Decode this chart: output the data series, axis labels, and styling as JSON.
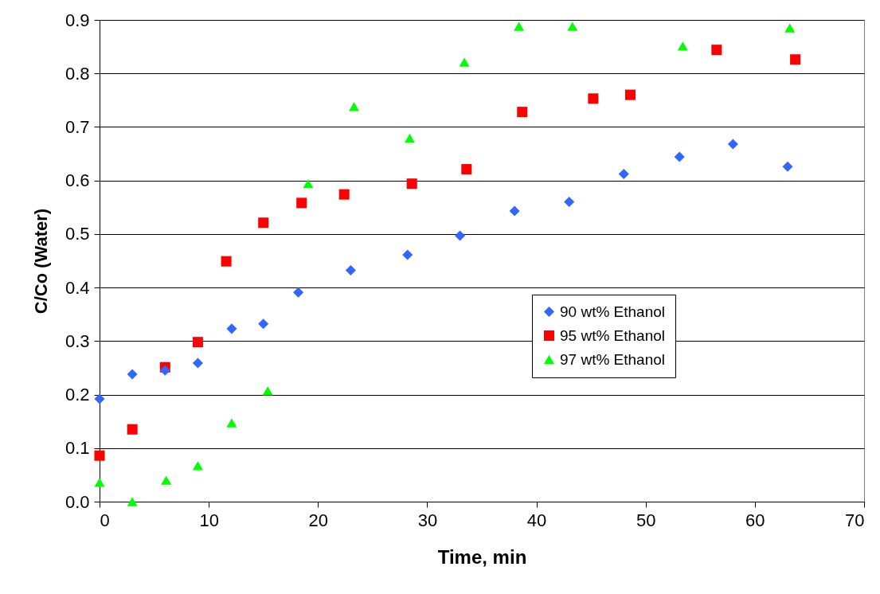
{
  "chart_data": {
    "type": "scatter",
    "xlabel": "Time, min",
    "ylabel": "C/Co (Water)",
    "xlim": [
      0,
      70
    ],
    "ylim": [
      0,
      0.9
    ],
    "xticks": [
      0,
      10,
      20,
      30,
      40,
      50,
      60,
      70
    ],
    "yticks": [
      {
        "value": 0,
        "label": "0.0"
      },
      0.1,
      0.2,
      0.3,
      0.4,
      0.5,
      0.6,
      0.7,
      0.8,
      0.9
    ],
    "grid": "y",
    "legend": "right",
    "series": [
      {
        "name": "90 wt% Ethanol",
        "color": "#3366ff",
        "marker": "diamond",
        "x": [
          0,
          3,
          6,
          9,
          12.1,
          15,
          18.2,
          23,
          28.2,
          33,
          38,
          43,
          48,
          53.1,
          58,
          63
        ],
        "values": [
          0.192,
          0.238,
          0.245,
          0.259,
          0.323,
          0.332,
          0.391,
          0.432,
          0.461,
          0.497,
          0.543,
          0.56,
          0.612,
          0.644,
          0.668,
          0.626
        ]
      },
      {
        "name": "95 wt% Ethanol",
        "color": "#ff0000",
        "marker": "square",
        "x": [
          0,
          3,
          6,
          9,
          11.6,
          15,
          18.5,
          22.4,
          28.6,
          33.6,
          38.7,
          45.2,
          48.6,
          56.5,
          63.7
        ],
        "values": [
          0.086,
          0.135,
          0.251,
          0.298,
          0.449,
          0.521,
          0.558,
          0.574,
          0.594,
          0.621,
          0.728,
          0.753,
          0.76,
          0.844,
          0.826
        ]
      },
      {
        "name": "97 wt% Ethanol",
        "color": "#00ff00",
        "marker": "triangle",
        "x": [
          0,
          3,
          6.1,
          9,
          12.1,
          15.4,
          19.1,
          23.3,
          28.4,
          33.4,
          38.4,
          43.3,
          53.4,
          63.2
        ],
        "values": [
          0.036,
          0,
          0.04,
          0.067,
          0.147,
          0.207,
          0.594,
          0.738,
          0.679,
          0.821,
          0.888,
          0.888,
          0.851,
          0.885
        ]
      }
    ]
  }
}
